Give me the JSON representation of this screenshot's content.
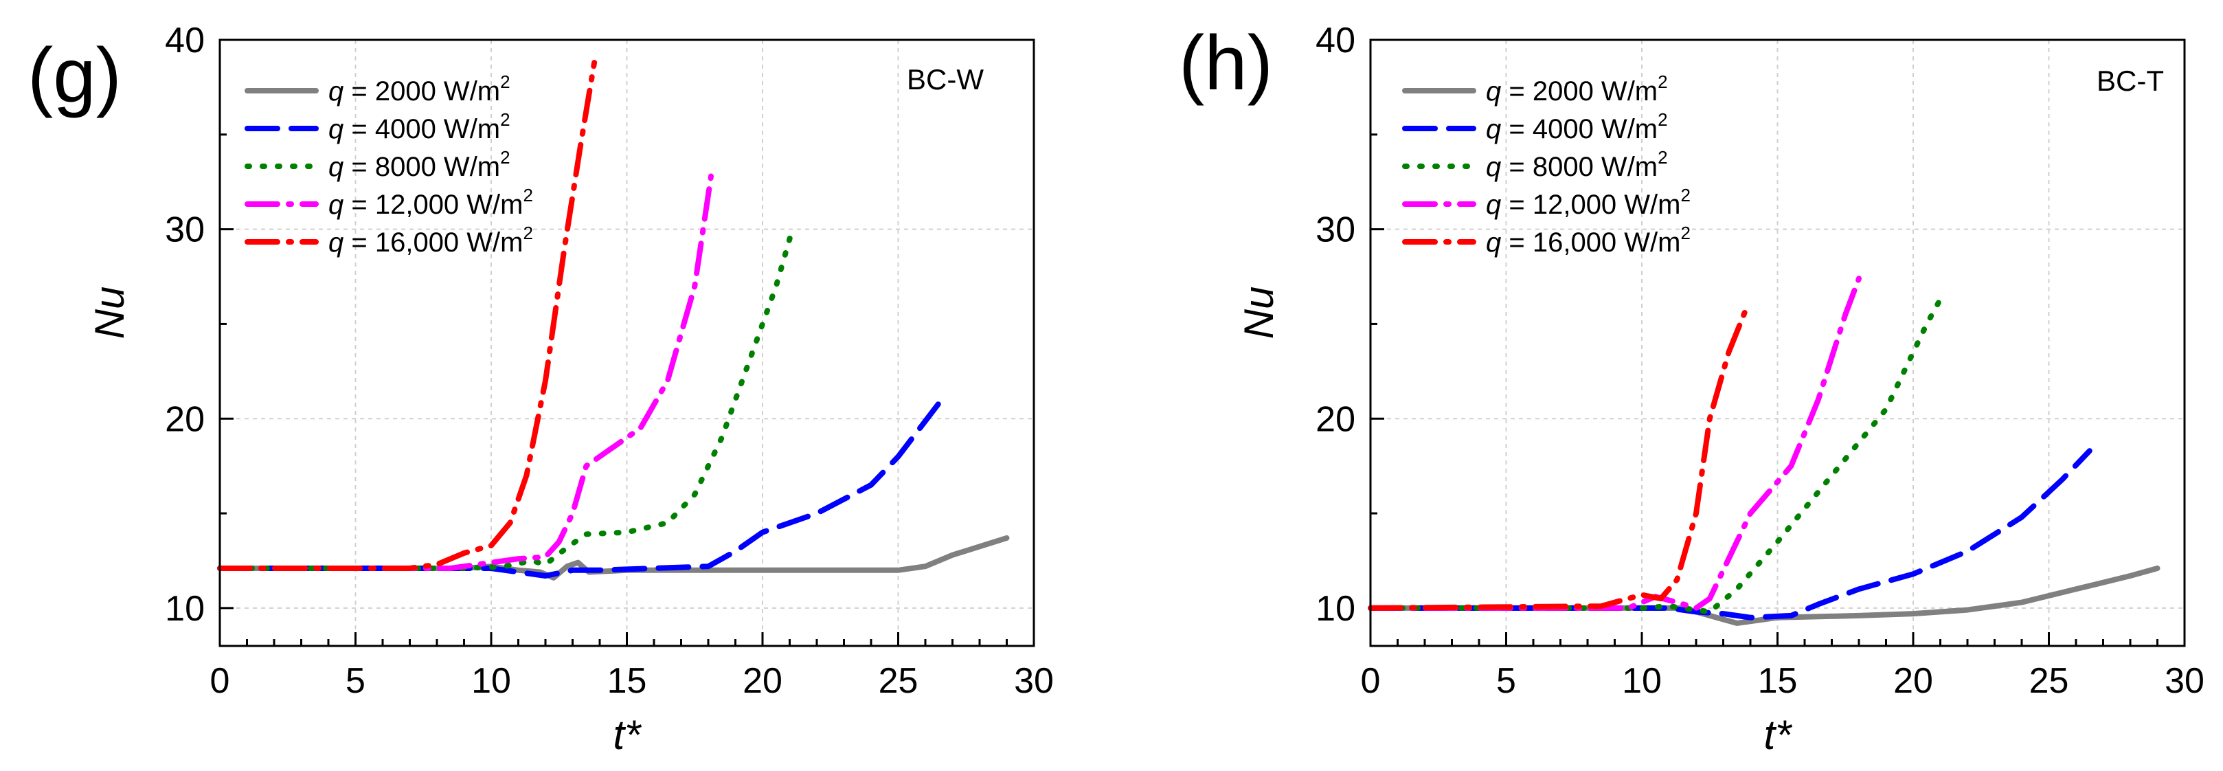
{
  "legend_labels": {
    "q_symbol": "q",
    "unit_base": "W/m",
    "unit_exp": "2",
    "items": [
      {
        "value": "= 2000",
        "color": "#808080",
        "dash": "solid"
      },
      {
        "value": "= 4000",
        "color": "#0000ff",
        "dash": "dash"
      },
      {
        "value": "= 8000",
        "color": "#008000",
        "dash": "dot"
      },
      {
        "value": "= 12,000",
        "color": "#ff00ff",
        "dash": "dashdot"
      },
      {
        "value": "= 16,000",
        "color": "#ff0000",
        "dash": "dashdot"
      }
    ]
  },
  "chart_data": [
    {
      "type": "line",
      "panel_label": "(g)",
      "tag": "BC-W",
      "xlabel": "t*",
      "ylabel": "Nu",
      "xlim": [
        0,
        30
      ],
      "ylim": [
        8,
        40
      ],
      "xticks": [
        0,
        5,
        10,
        15,
        20,
        25,
        30
      ],
      "yticks": [
        10,
        20,
        30,
        40
      ],
      "grid": true,
      "legend": "top-left",
      "series": [
        {
          "name": "q = 2000 W/m2",
          "color": "#808080",
          "dash": "solid",
          "points": [
            [
              0,
              12.1
            ],
            [
              9,
              12.1
            ],
            [
              10,
              12.2
            ],
            [
              11,
              12.0
            ],
            [
              11.8,
              11.9
            ],
            [
              12.3,
              11.6
            ],
            [
              12.8,
              12.2
            ],
            [
              13.2,
              12.4
            ],
            [
              13.6,
              11.9
            ],
            [
              15,
              12.0
            ],
            [
              20,
              12.0
            ],
            [
              25,
              12.0
            ],
            [
              26,
              12.2
            ],
            [
              27,
              12.8
            ],
            [
              29,
              13.7
            ]
          ]
        },
        {
          "name": "q = 4000 W/m2",
          "color": "#0000ff",
          "dash": "dash",
          "points": [
            [
              0,
              12.1
            ],
            [
              9,
              12.1
            ],
            [
              10,
              12.1
            ],
            [
              11,
              11.9
            ],
            [
              12,
              11.7
            ],
            [
              13,
              12.0
            ],
            [
              14,
              12.0
            ],
            [
              18,
              12.2
            ],
            [
              19,
              13.0
            ],
            [
              20,
              14.0
            ],
            [
              22,
              15.0
            ],
            [
              24,
              16.5
            ],
            [
              25,
              18.0
            ],
            [
              26.6,
              21.0
            ]
          ]
        },
        {
          "name": "q = 8000 W/m2",
          "color": "#008000",
          "dash": "dot",
          "points": [
            [
              0,
              12.1
            ],
            [
              9,
              12.1
            ],
            [
              10.5,
              12.2
            ],
            [
              11.5,
              12.5
            ],
            [
              12,
              12.3
            ],
            [
              12.8,
              13.2
            ],
            [
              13.5,
              13.9
            ],
            [
              15,
              14.0
            ],
            [
              16.5,
              14.5
            ],
            [
              17.5,
              16.0
            ],
            [
              18.5,
              19.0
            ],
            [
              19.5,
              23.0
            ],
            [
              20.5,
              27.0
            ],
            [
              21.1,
              30.0
            ]
          ]
        },
        {
          "name": "q = 12,000 W/m2",
          "color": "#ff00ff",
          "dash": "dashdot",
          "points": [
            [
              0,
              12.1
            ],
            [
              8.5,
              12.1
            ],
            [
              10,
              12.4
            ],
            [
              11,
              12.6
            ],
            [
              12,
              12.7
            ],
            [
              12.5,
              13.5
            ],
            [
              13,
              15.0
            ],
            [
              13.5,
              17.5
            ],
            [
              14.5,
              18.5
            ],
            [
              15.5,
              19.5
            ],
            [
              16.5,
              22.0
            ],
            [
              17.5,
              27.0
            ],
            [
              18.1,
              32.8
            ]
          ]
        },
        {
          "name": "q = 16,000 W/m2",
          "color": "#ff0000",
          "dash": "dashdot",
          "points": [
            [
              0,
              12.1
            ],
            [
              7,
              12.1
            ],
            [
              8,
              12.3
            ],
            [
              9,
              12.9
            ],
            [
              10,
              13.3
            ],
            [
              10.7,
              14.5
            ],
            [
              11.3,
              17.0
            ],
            [
              12,
              22.0
            ],
            [
              12.7,
              29.0
            ],
            [
              13.3,
              34.5
            ],
            [
              13.8,
              38.8
            ]
          ]
        }
      ]
    },
    {
      "type": "line",
      "panel_label": "(h)",
      "tag": "BC-T",
      "xlabel": "t*",
      "ylabel": "Nu",
      "xlim": [
        0,
        30
      ],
      "ylim": [
        8,
        40
      ],
      "xticks": [
        0,
        5,
        10,
        15,
        20,
        25,
        30
      ],
      "yticks": [
        10,
        20,
        30,
        40
      ],
      "grid": true,
      "legend": "top-left",
      "series": [
        {
          "name": "q = 2000 W/m2",
          "color": "#808080",
          "dash": "solid",
          "points": [
            [
              0,
              10.0
            ],
            [
              10,
              10.0
            ],
            [
              11.5,
              10.0
            ],
            [
              12.5,
              9.6
            ],
            [
              13.5,
              9.2
            ],
            [
              15,
              9.5
            ],
            [
              18,
              9.6
            ],
            [
              20,
              9.7
            ],
            [
              22,
              9.9
            ],
            [
              24,
              10.3
            ],
            [
              26,
              11.0
            ],
            [
              28,
              11.7
            ],
            [
              29,
              12.1
            ]
          ]
        },
        {
          "name": "q = 4000 W/m2",
          "color": "#0000ff",
          "dash": "dash",
          "points": [
            [
              0,
              10.0
            ],
            [
              10,
              10.0
            ],
            [
              11,
              10.0
            ],
            [
              12,
              9.8
            ],
            [
              13,
              9.7
            ],
            [
              14,
              9.5
            ],
            [
              15.5,
              9.6
            ],
            [
              16.5,
              10.2
            ],
            [
              18,
              11.0
            ],
            [
              20,
              11.8
            ],
            [
              22,
              13.0
            ],
            [
              24,
              14.8
            ],
            [
              25.5,
              16.8
            ],
            [
              26.5,
              18.3
            ]
          ]
        },
        {
          "name": "q = 8000 W/m2",
          "color": "#008000",
          "dash": "dot",
          "points": [
            [
              0,
              10.0
            ],
            [
              10,
              10.0
            ],
            [
              11,
              10.1
            ],
            [
              12,
              9.9
            ],
            [
              12.5,
              9.8
            ],
            [
              13.5,
              11.0
            ],
            [
              15,
              13.5
            ],
            [
              17,
              17.0
            ],
            [
              19,
              20.5
            ],
            [
              20.5,
              25.0
            ],
            [
              21,
              26.3
            ]
          ]
        },
        {
          "name": "q = 12,000 W/m2",
          "color": "#ff00ff",
          "dash": "dashdot",
          "points": [
            [
              0,
              10.0
            ],
            [
              9.5,
              10.0
            ],
            [
              10.5,
              10.6
            ],
            [
              11.3,
              10.3
            ],
            [
              12,
              10.0
            ],
            [
              12.5,
              10.5
            ],
            [
              13,
              12.0
            ],
            [
              14,
              15.0
            ],
            [
              15.5,
              17.5
            ],
            [
              16.5,
              21.0
            ],
            [
              17.5,
              25.5
            ],
            [
              18,
              27.4
            ]
          ]
        },
        {
          "name": "q = 16,000 W/m2",
          "color": "#ff0000",
          "dash": "dashdot",
          "points": [
            [
              0,
              10.0
            ],
            [
              8.5,
              10.1
            ],
            [
              9.5,
              10.5
            ],
            [
              10,
              10.7
            ],
            [
              10.7,
              10.5
            ],
            [
              11.3,
              11.5
            ],
            [
              12,
              15.0
            ],
            [
              12.5,
              20.0
            ],
            [
              13.2,
              23.5
            ],
            [
              13.9,
              26.0
            ]
          ]
        }
      ]
    }
  ]
}
